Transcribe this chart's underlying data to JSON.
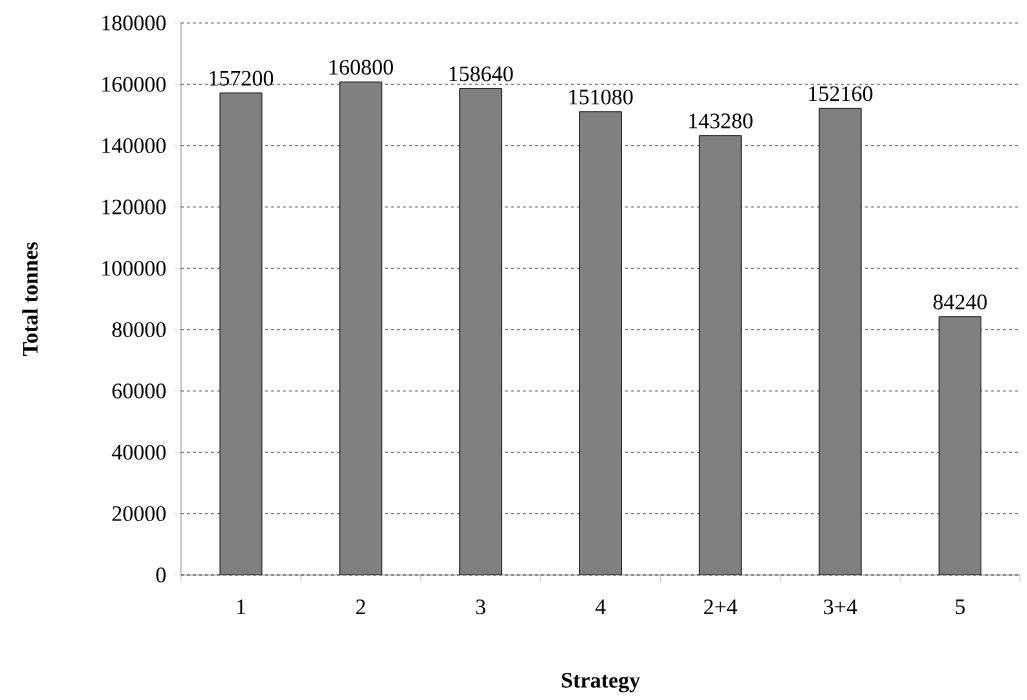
{
  "chart_data": {
    "type": "bar",
    "xlabel": "Strategy",
    "ylabel": "Total tonnes",
    "categories": [
      "1",
      "2",
      "3",
      "4",
      "2+4",
      "3+4",
      "5"
    ],
    "values": [
      157200,
      160800,
      158640,
      151080,
      143280,
      152160,
      84240
    ],
    "color": "#808080",
    "ylim": [
      0,
      180000
    ],
    "yticks": [
      0,
      20000,
      40000,
      60000,
      80000,
      100000,
      120000,
      140000,
      160000,
      180000
    ],
    "grid": "y",
    "data_labels": true
  }
}
